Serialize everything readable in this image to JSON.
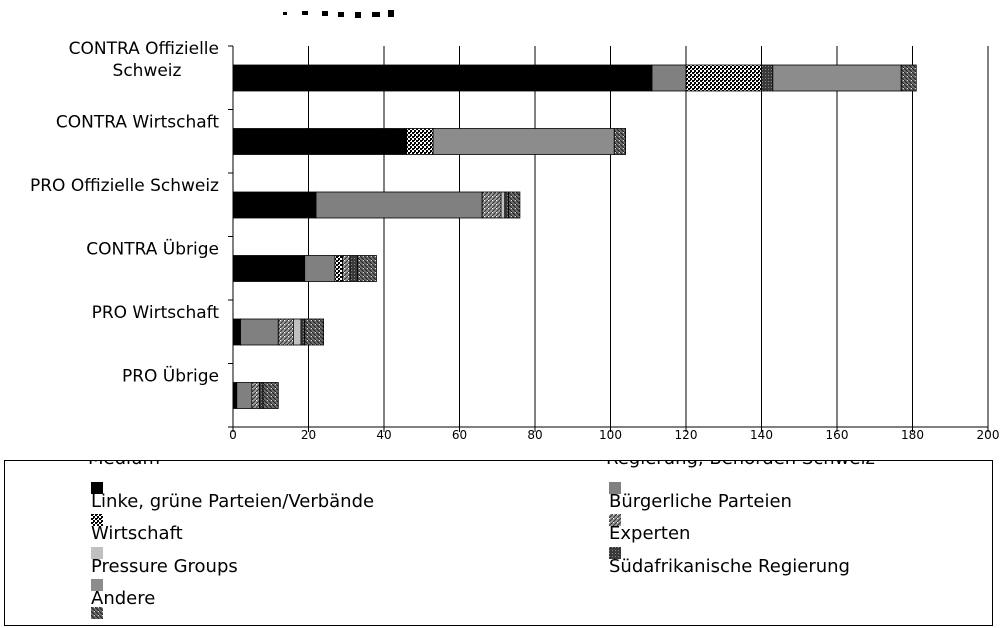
{
  "chart_data": {
    "type": "bar",
    "orientation": "horizontal",
    "stacked": true,
    "title": "",
    "xlabel": "",
    "ylabel": "",
    "xlim": [
      0,
      200
    ],
    "xticks": [
      0,
      20,
      40,
      60,
      80,
      100,
      120,
      140,
      160,
      180,
      200
    ],
    "grid": true,
    "legend_position": "bottom",
    "categories": [
      "CONTRA Offizielle Schweiz",
      "CONTRA Wirtschaft",
      "PRO Offizielle Schweiz",
      "CONTRA Übrige",
      "PRO Wirtschaft",
      "PRO Übrige"
    ],
    "category_lines": [
      [
        "CONTRA Offizielle",
        "Schweiz"
      ],
      [
        "CONTRA Wirtschaft"
      ],
      [
        "PRO Offizielle Schweiz"
      ],
      [
        "CONTRA Übrige"
      ],
      [
        "PRO Wirtschaft"
      ],
      [
        "PRO Übrige"
      ]
    ],
    "series": [
      {
        "name": "Linke, grüne Parteien/Verbände",
        "pattern": "solid-black",
        "values": [
          111,
          46,
          22,
          19,
          2,
          1
        ]
      },
      {
        "name": "Bürgerliche Parteien",
        "pattern": "solid-gray",
        "values": [
          9,
          0,
          44,
          8,
          10,
          4
        ]
      },
      {
        "name": "Wirtschaft",
        "pattern": "dense-check",
        "values": [
          20,
          7,
          0,
          2,
          0,
          0
        ]
      },
      {
        "name": "Experten",
        "pattern": "diagonal",
        "values": [
          0,
          0,
          5,
          2,
          4,
          2
        ]
      },
      {
        "name": "Pressure Groups",
        "pattern": "light-gray",
        "values": [
          0,
          0,
          1,
          0,
          2,
          0
        ]
      },
      {
        "name": "Südafrikanische Regierung",
        "pattern": "dark-hatch",
        "values": [
          3,
          0,
          1,
          2,
          1,
          1
        ]
      },
      {
        "name": "Andere",
        "pattern": "mid-gray",
        "values": [
          34,
          48,
          0,
          0,
          0,
          0
        ]
      },
      {
        "name": "",
        "pattern": "diagonal-dark",
        "values": [
          4,
          3,
          3,
          5,
          5,
          4
        ]
      }
    ]
  },
  "legend": {
    "clipped_labels": [
      "Medium",
      "Regierung, Behörden Schweiz"
    ]
  }
}
